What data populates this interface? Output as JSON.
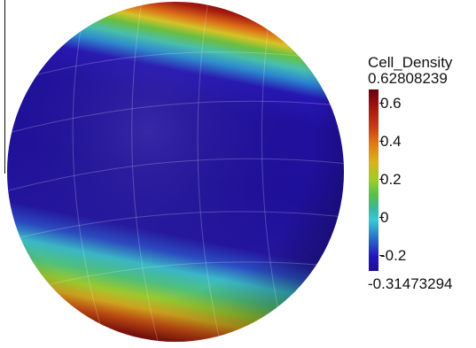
{
  "render_view": {
    "scalar_name": "Cell_Density",
    "range_max": "0.62808239",
    "range_min": "-0.31473294",
    "ticks": [
      "0.6",
      "0.4",
      "0.2",
      "0",
      "-0.2"
    ],
    "colors": {
      "background": "#ffffff",
      "low": "#1e0f9a",
      "mid_low": "#3bc9d6",
      "mid": "#9ccc2a",
      "mid_high": "#e07a18",
      "high": "#67000d"
    }
  }
}
